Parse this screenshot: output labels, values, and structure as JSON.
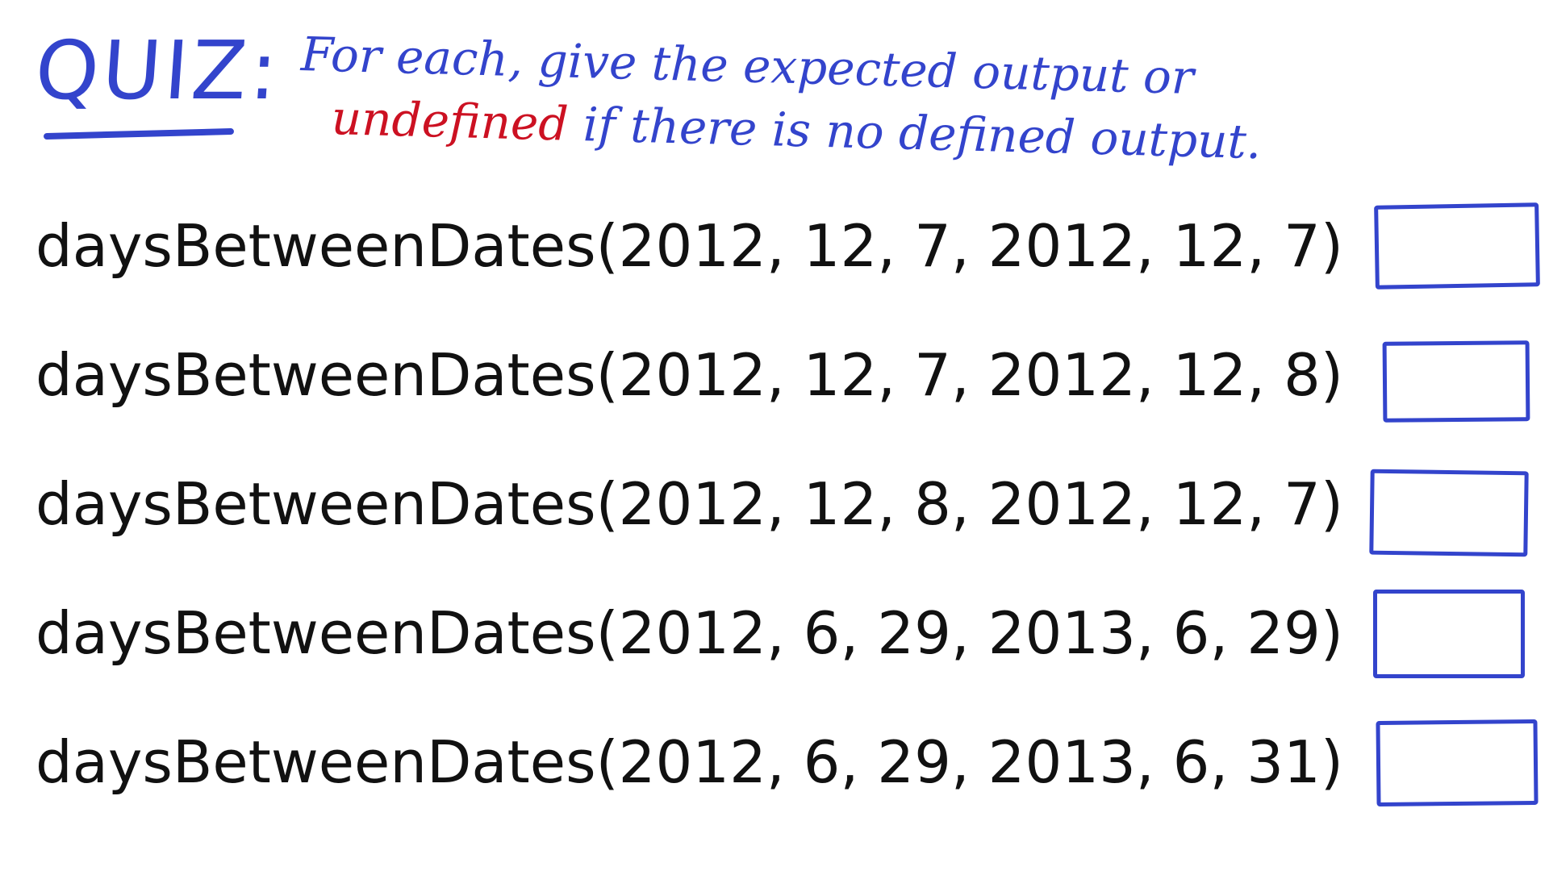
{
  "header": {
    "quiz_label": "QUIZ:",
    "instruction_line1_part1": "For each, give the expected output or",
    "instruction_undefined": "undefined",
    "instruction_line2_rest": " if there is no defined output."
  },
  "questions": [
    {
      "call": "daysBetweenDates(2012, 12, 7, 2012, 12, 7)",
      "answer": ""
    },
    {
      "call": "daysBetweenDates(2012, 12, 7, 2012, 12, 8)",
      "answer": ""
    },
    {
      "call": "daysBetweenDates(2012, 12, 8, 2012, 12, 7)",
      "answer": ""
    },
    {
      "call": "daysBetweenDates(2012, 6, 29, 2013, 6, 29)",
      "answer": ""
    },
    {
      "call": "daysBetweenDates(2012, 6, 29, 2013, 6, 31)",
      "answer": ""
    }
  ],
  "colors": {
    "handwriting_blue": "#3344cc",
    "handwriting_red": "#cc1122",
    "text": "#111111",
    "background": "#ffffff"
  }
}
